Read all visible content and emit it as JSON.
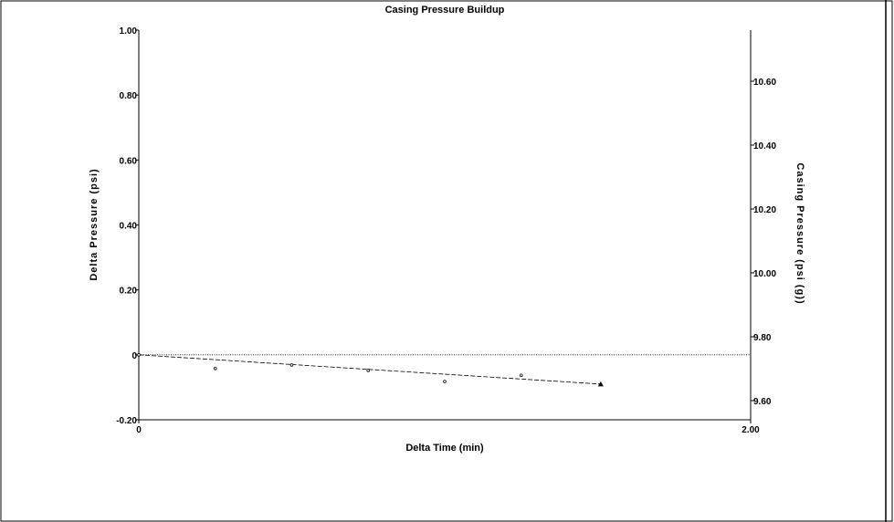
{
  "chart_data": {
    "type": "scatter",
    "title": "Casing Pressure Buildup",
    "xlabel": "Delta Time (min)",
    "ylabel": "Delta Pressure (psi)",
    "y2label": "Casing Pressure (psi (g))",
    "xlim": [
      0,
      2.0
    ],
    "ylim": [
      -0.2,
      1.0
    ],
    "y2lim": [
      9.54,
      10.76
    ],
    "x_ticks": [
      "0",
      "2.00"
    ],
    "x_tick_values": [
      0,
      2.0
    ],
    "y_ticks": [
      "-0.20",
      "0",
      "0.20",
      "0.40",
      "0.60",
      "0.80",
      "1.00"
    ],
    "y_tick_values": [
      -0.2,
      0,
      0.2,
      0.4,
      0.6,
      0.8,
      1.0
    ],
    "y2_ticks": [
      "9.60",
      "9.80",
      "10.00",
      "10.20",
      "10.40",
      "10.60"
    ],
    "y2_tick_values": [
      9.6,
      9.8,
      10.0,
      10.2,
      10.4,
      10.6
    ],
    "zero_line": {
      "y": 0,
      "style": "dotted"
    },
    "series": [
      {
        "points": {
          "x": [
            0.0,
            0.25,
            0.5,
            0.75,
            1.0,
            1.25,
            1.51
          ],
          "y": [
            0.0,
            -0.042,
            -0.031,
            -0.048,
            -0.082,
            -0.063,
            -0.09
          ]
        },
        "final_marker": "triangle"
      }
    ],
    "trend_line": {
      "x": [
        0.0,
        1.51
      ],
      "y": [
        0.0,
        -0.09
      ],
      "style": "dashed"
    },
    "grid": false
  }
}
